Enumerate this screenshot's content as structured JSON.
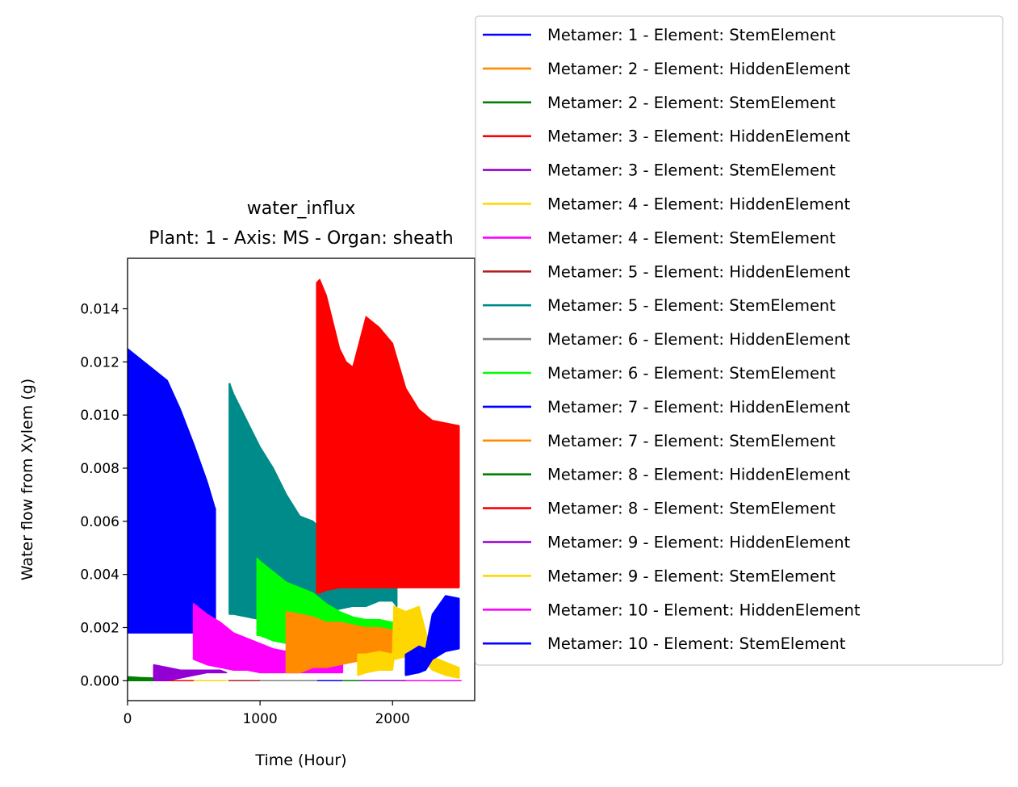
{
  "chart_data": {
    "type": "line",
    "title": "water_influx",
    "subtitle": "Plant: 1 - Axis: MS - Organ: sheath",
    "xlabel": "Time (Hour)",
    "ylabel": "Water flow from Xylem (g)",
    "xlim": [
      0,
      2620
    ],
    "ylim": [
      -0.00075,
      0.0159
    ],
    "xticks": [
      0,
      1000,
      2000
    ],
    "yticks": [
      0.0,
      0.002,
      0.004,
      0.006,
      0.008,
      0.01,
      0.012,
      0.014
    ],
    "xtick_labels": [
      "0",
      "1000",
      "2000"
    ],
    "ytick_labels": [
      "0.000",
      "0.002",
      "0.004",
      "0.006",
      "0.008",
      "0.010",
      "0.012",
      "0.014"
    ],
    "grid": false,
    "legend_position": "outside-right",
    "series": [
      {
        "name": "Metamer: 1 - Element: StemElement",
        "color": "#0000ff",
        "x": [
          0,
          100,
          200,
          300,
          400,
          500,
          600,
          660
        ],
        "low": [
          0.0018,
          0.0018,
          0.0018,
          0.0018,
          0.0018,
          0.0018,
          0.0018,
          0.0018
        ],
        "high": [
          0.0125,
          0.0121,
          0.0117,
          0.0113,
          0.0102,
          0.0089,
          0.0075,
          0.0065
        ]
      },
      {
        "name": "Metamer: 2 - Element: HiddenElement",
        "color": "#ff8c00",
        "x": [],
        "low": [],
        "high": []
      },
      {
        "name": "Metamer: 2 - Element: StemElement",
        "color": "#008000",
        "x": [
          0,
          100,
          200
        ],
        "low": [
          0.0,
          0.0,
          0.0
        ],
        "high": [
          0.00015,
          0.00012,
          0.0001
        ]
      },
      {
        "name": "Metamer: 3 - Element: HiddenElement",
        "color": "#ff0000",
        "x": [
          200,
          500
        ],
        "low": [
          0.0,
          0.0
        ],
        "high": [
          0.0,
          0.0
        ]
      },
      {
        "name": "Metamer: 3 - Element: StemElement",
        "color": "#9400d3",
        "x": [
          200,
          300,
          400,
          500,
          600,
          700,
          750
        ],
        "low": [
          0.0,
          0.0,
          0.0001,
          0.0002,
          0.0003,
          0.0003,
          0.0003
        ],
        "high": [
          0.0006,
          0.0005,
          0.0004,
          0.0004,
          0.0004,
          0.0004,
          0.0003
        ]
      },
      {
        "name": "Metamer: 4 - Element: HiddenElement",
        "color": "#ffd700",
        "x": [
          500,
          750
        ],
        "low": [
          0.0,
          0.0
        ],
        "high": [
          0.0,
          0.0
        ]
      },
      {
        "name": "Metamer: 4 - Element: StemElement",
        "color": "#ff00ff",
        "x": [
          500,
          600,
          700,
          800,
          900,
          1000,
          1100,
          1200,
          1300,
          1400,
          1500,
          1600,
          1620
        ],
        "low": [
          0.0008,
          0.0006,
          0.0005,
          0.0004,
          0.0004,
          0.0003,
          0.0003,
          0.0003,
          0.0003,
          0.0003,
          0.0003,
          0.0003,
          0.0003
        ],
        "high": [
          0.0029,
          0.0025,
          0.0022,
          0.0018,
          0.0016,
          0.0014,
          0.0012,
          0.0011,
          0.0009,
          0.0008,
          0.0007,
          0.0007,
          0.0006
        ]
      },
      {
        "name": "Metamer: 5 - Element: HiddenElement",
        "color": "#b22222",
        "x": [
          760,
          1000
        ],
        "low": [
          0.0,
          0.0
        ],
        "high": [
          0.0,
          0.0
        ]
      },
      {
        "name": "Metamer: 5 - Element: StemElement",
        "color": "#008b8b",
        "x": [
          770,
          800,
          900,
          1000,
          1100,
          1200,
          1300,
          1400,
          1500,
          1600,
          1700,
          1800,
          1900,
          2000,
          2030
        ],
        "low": [
          0.0025,
          0.0025,
          0.0024,
          0.0023,
          0.0024,
          0.0025,
          0.0025,
          0.0026,
          0.0026,
          0.0027,
          0.0028,
          0.0028,
          0.003,
          0.003,
          0.0028
        ],
        "high": [
          0.0112,
          0.0108,
          0.0098,
          0.0088,
          0.008,
          0.007,
          0.0062,
          0.006,
          0.0055,
          0.0048,
          0.0042,
          0.0042,
          0.0043,
          0.0043,
          0.004
        ]
      },
      {
        "name": "Metamer: 6 - Element: HiddenElement",
        "color": "#808080",
        "x": [
          1000,
          1430
        ],
        "low": [
          0.0,
          0.0
        ],
        "high": [
          0.0,
          0.0
        ]
      },
      {
        "name": "Metamer: 6 - Element: StemElement",
        "color": "#00ff00",
        "x": [
          980,
          1000,
          1100,
          1200,
          1300,
          1400,
          1500,
          1600,
          1700,
          1800,
          1900,
          2000,
          2010
        ],
        "low": [
          0.0017,
          0.0017,
          0.0015,
          0.0014,
          0.0013,
          0.0013,
          0.0013,
          0.0013,
          0.0013,
          0.0012,
          0.0012,
          0.0012,
          0.0012
        ],
        "high": [
          0.0046,
          0.0045,
          0.0041,
          0.0037,
          0.0035,
          0.0033,
          0.0029,
          0.0026,
          0.0024,
          0.0023,
          0.0023,
          0.0022,
          0.0022
        ]
      },
      {
        "name": "Metamer: 7 - Element: HiddenElement",
        "color": "#0000ff",
        "x": [
          1430,
          2100
        ],
        "low": [
          0.0,
          0.0
        ],
        "high": [
          0.0,
          0.0
        ]
      },
      {
        "name": "Metamer: 7 - Element: StemElement",
        "color": "#ff8c00",
        "x": [
          1200,
          1300,
          1400,
          1500,
          1600,
          1700,
          1800,
          1900,
          2000
        ],
        "low": [
          0.0003,
          0.0003,
          0.0005,
          0.0005,
          0.0006,
          0.0007,
          0.0008,
          0.0008,
          0.0008
        ],
        "high": [
          0.0026,
          0.0025,
          0.0024,
          0.0022,
          0.0022,
          0.0021,
          0.002,
          0.002,
          0.0019
        ]
      },
      {
        "name": "Metamer: 8 - Element: HiddenElement",
        "color": "#008000",
        "x": [
          1620,
          1750
        ],
        "low": [
          0.0,
          0.0
        ],
        "high": [
          0.0,
          0.0
        ]
      },
      {
        "name": "Metamer: 8 - Element: StemElement",
        "color": "#ff0000",
        "x": [
          1430,
          1450,
          1500,
          1600,
          1650,
          1700,
          1800,
          1900,
          2000,
          2100,
          2200,
          2300,
          2400,
          2500
        ],
        "low": [
          0.0033,
          0.0033,
          0.0034,
          0.0035,
          0.0035,
          0.0035,
          0.0035,
          0.0035,
          0.0035,
          0.0035,
          0.0035,
          0.0035,
          0.0035,
          0.0035
        ],
        "high": [
          0.015,
          0.0151,
          0.0145,
          0.0125,
          0.012,
          0.0118,
          0.0137,
          0.0133,
          0.0127,
          0.011,
          0.0102,
          0.0098,
          0.0097,
          0.0096
        ]
      },
      {
        "name": "Metamer: 9 - Element: HiddenElement",
        "color": "#9400d3",
        "x": [
          1750,
          2520
        ],
        "low": [
          0.0,
          0.0
        ],
        "high": [
          0.0,
          0.0
        ]
      },
      {
        "name": "Metamer: 9 - Element: StemElement",
        "color": "#ffd700",
        "x": [
          1740,
          1800,
          1900,
          2000,
          2010,
          2100,
          2200,
          2300,
          2400,
          2500
        ],
        "low": [
          0.0002,
          0.0003,
          0.0004,
          0.0004,
          0.0008,
          0.0009,
          0.001,
          0.0004,
          0.0002,
          0.0001
        ],
        "high": [
          0.001,
          0.001,
          0.0011,
          0.001,
          0.0028,
          0.0026,
          0.0028,
          0.0009,
          0.0007,
          0.0005
        ]
      },
      {
        "name": "Metamer: 10 - Element: HiddenElement",
        "color": "#ff00ff",
        "x": [
          2100,
          2520
        ],
        "low": [
          0.0,
          0.0
        ],
        "high": [
          0.0,
          0.0
        ]
      },
      {
        "name": "Metamer: 10 - Element: StemElement",
        "color": "#0000ff",
        "x": [
          2100,
          2200,
          2250,
          2300,
          2400,
          2500
        ],
        "low": [
          0.0002,
          0.0003,
          0.0004,
          0.0008,
          0.0011,
          0.0012
        ],
        "high": [
          0.001,
          0.0013,
          0.0012,
          0.0025,
          0.0032,
          0.0031
        ]
      }
    ]
  }
}
